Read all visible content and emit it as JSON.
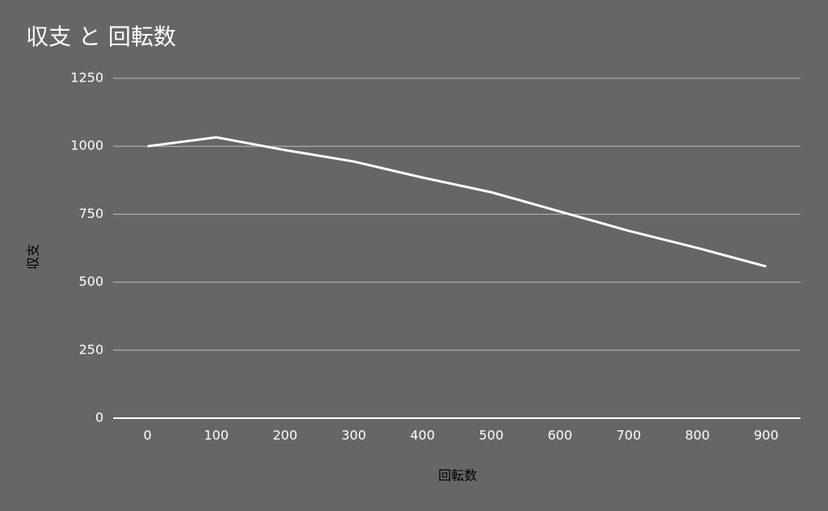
{
  "chart_data": {
    "type": "line",
    "title": "収支 と 回転数",
    "x_label": "回転数",
    "y_label": "収支",
    "categories": [
      "0",
      "100",
      "200",
      "300",
      "400",
      "500",
      "600",
      "700",
      "800",
      "900"
    ],
    "series": [
      {
        "name": "収支",
        "color": "#ffffff",
        "values": [
          1000,
          1033,
          986,
          944,
          885,
          831,
          760,
          689,
          626,
          558
        ]
      }
    ],
    "ylim": [
      0,
      1250
    ],
    "yticks": [
      0,
      250,
      500,
      750,
      1000,
      1250
    ],
    "grid": true
  }
}
